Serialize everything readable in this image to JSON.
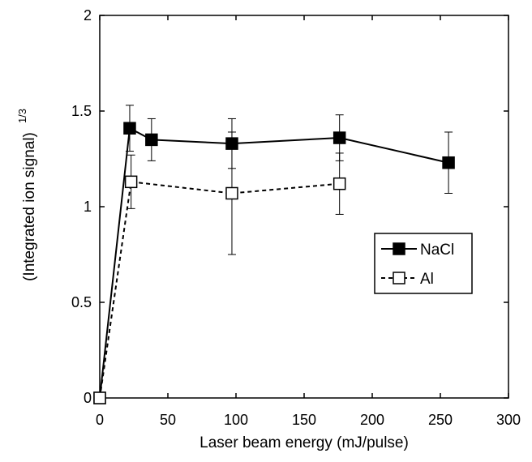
{
  "chart_data": {
    "type": "line",
    "xlabel": "Laser beam energy (mJ/pulse)",
    "ylabel": "(Integrated ion signal)",
    "ylabel_superscript": "1/3",
    "xlim": [
      0,
      300
    ],
    "xticks": [
      0,
      50,
      100,
      150,
      200,
      250,
      300
    ],
    "ylim": [
      0,
      2
    ],
    "yticks": [
      0,
      0.5,
      1,
      1.5,
      2
    ],
    "legend": "right",
    "series": [
      {
        "name": "NaCl",
        "color": "#000000",
        "marker": "filled-square",
        "dash": false,
        "x": [
          0,
          22,
          38,
          97,
          176,
          256
        ],
        "values": [
          0,
          1.41,
          1.35,
          1.33,
          1.36,
          1.23
        ],
        "errors": [
          null,
          0.12,
          0.11,
          0.13,
          0.12,
          0.16
        ]
      },
      {
        "name": "Al",
        "color": "#000000",
        "marker": "open-square",
        "dash": true,
        "x": [
          0,
          23,
          97,
          176
        ],
        "values": [
          0,
          1.13,
          1.07,
          1.12
        ],
        "errors": [
          null,
          0.14,
          0.32,
          0.16
        ]
      }
    ]
  }
}
